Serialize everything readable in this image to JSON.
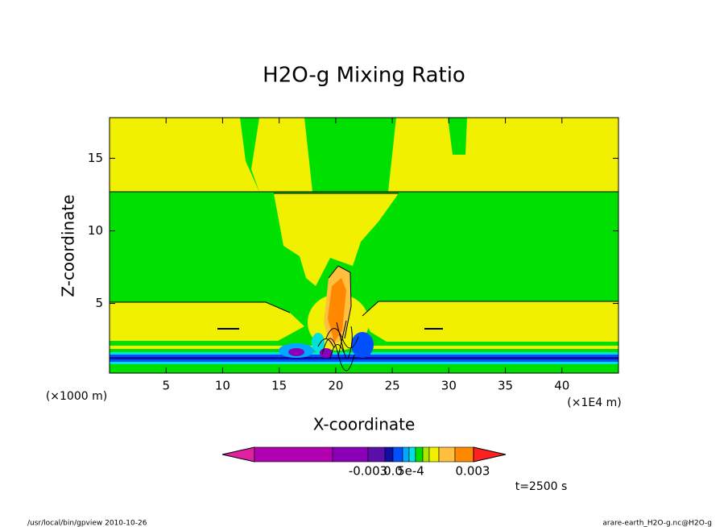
{
  "chart_data": {
    "type": "contour",
    "title": "H2O-g Mixing Ratio",
    "x_label": "X-coordinate",
    "y_label": "Z-coordinate",
    "x_unit_label": "(×1E4 m)",
    "y_unit_label": "(×1000 m)",
    "time_label": "t=2500 s",
    "footer_left": "/usr/local/bin/gpview  2010-10-26",
    "footer_right": "arare-earth_H2O-g.nc@H2O-g",
    "xlim": [
      0,
      45
    ],
    "xticks": [
      5,
      10,
      15,
      20,
      25,
      30,
      35,
      40
    ],
    "ylim": [
      0.2,
      17.8
    ],
    "yticks": [
      5,
      10,
      15
    ],
    "colorbar": {
      "colors": [
        "#e020a0",
        "#b000b0",
        "#8a00b8",
        "#5a10a8",
        "#1010a0",
        "#0050ff",
        "#00a8ff",
        "#00e0e0",
        "#00e000",
        "#a8e800",
        "#f0f000",
        "#ffc040",
        "#ff8800",
        "#ff2020"
      ],
      "labels": [
        "-0.003",
        "0.0",
        "5e-4",
        "0.003"
      ]
    }
  }
}
